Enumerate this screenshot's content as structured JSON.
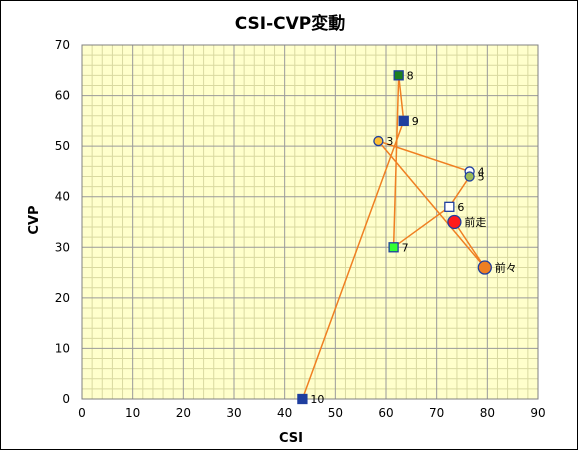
{
  "chart_data": {
    "type": "scatter",
    "title": "CSI-CVP変動",
    "xlabel": "CSI",
    "ylabel": "CVP",
    "xlim": [
      0,
      90
    ],
    "ylim": [
      0,
      70
    ],
    "xticks": [
      0,
      10,
      20,
      30,
      40,
      50,
      60,
      70,
      80,
      90
    ],
    "yticks": [
      0,
      10,
      20,
      30,
      40,
      50,
      60,
      70
    ],
    "grid": true,
    "plot_background": "#ffffcc",
    "grid_major_color": "#9a9a9a",
    "grid_minor_color": "#d9d9a0",
    "line_color": "#ef7f22",
    "points": [
      {
        "label": "前走",
        "x": 73.5,
        "y": 35,
        "shape": "circle",
        "fill": "#ff1a1a",
        "stroke": "#1f3f9f",
        "size": "large"
      },
      {
        "label": "前々",
        "x": 79.5,
        "y": 26,
        "shape": "circle",
        "fill": "#ef7f22",
        "stroke": "#1f3f9f",
        "size": "large"
      },
      {
        "label": "3",
        "x": 58.5,
        "y": 51,
        "shape": "circle",
        "fill": "#ffc033",
        "stroke": "#1f3f9f",
        "size": "small"
      },
      {
        "label": "4",
        "x": 76.5,
        "y": 45,
        "shape": "circle",
        "fill": "#ffffff",
        "stroke": "#1f3f9f",
        "size": "small"
      },
      {
        "label": "5",
        "x": 76.5,
        "y": 44,
        "shape": "circle",
        "fill": "#9bbb59",
        "stroke": "#1f3f9f",
        "size": "small"
      },
      {
        "label": "6",
        "x": 72.5,
        "y": 38,
        "shape": "square",
        "fill": "#ffffff",
        "stroke": "#1f3f9f",
        "size": "small"
      },
      {
        "label": "7",
        "x": 61.5,
        "y": 30,
        "shape": "square",
        "fill": "#33ff33",
        "stroke": "#1f3f9f",
        "size": "small"
      },
      {
        "label": "8",
        "x": 62.5,
        "y": 64,
        "shape": "square",
        "fill": "#1f7f1f",
        "stroke": "#1f3f9f",
        "size": "small"
      },
      {
        "label": "9",
        "x": 63.5,
        "y": 55,
        "shape": "square",
        "fill": "#1f3f9f",
        "stroke": "#1f3f9f",
        "size": "small"
      },
      {
        "label": "10",
        "x": 43.5,
        "y": 0,
        "shape": "square",
        "fill": "#1f3f9f",
        "stroke": "#1f3f9f",
        "size": "small"
      }
    ]
  }
}
